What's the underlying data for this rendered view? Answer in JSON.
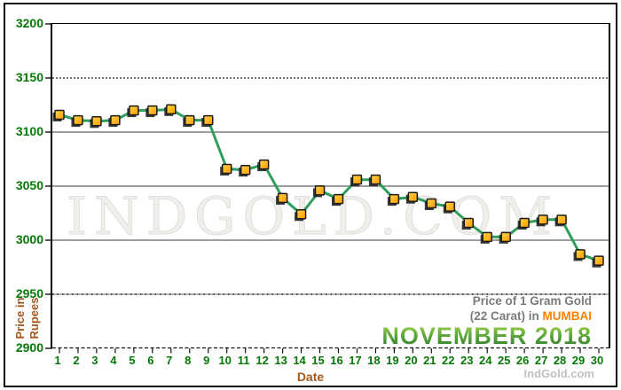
{
  "chart_data": {
    "type": "line",
    "x": [
      1,
      2,
      3,
      4,
      5,
      6,
      7,
      8,
      9,
      10,
      11,
      12,
      13,
      14,
      15,
      16,
      17,
      18,
      19,
      20,
      21,
      22,
      23,
      24,
      25,
      26,
      27,
      28,
      29,
      30
    ],
    "values": [
      3116,
      3111,
      3110,
      3111,
      3120,
      3120,
      3121,
      3111,
      3111,
      3066,
      3065,
      3070,
      3039,
      3024,
      3046,
      3038,
      3056,
      3056,
      3038,
      3040,
      3034,
      3031,
      3016,
      3003,
      3003,
      3016,
      3019,
      3019,
      2987,
      2981
    ],
    "series_name": "Price of 1 Gram Gold (22 Carat), Mumbai, November 2018",
    "xlabel": "Date",
    "ylabel": "Price in Rupees",
    "ylabel_lines": [
      "Price in",
      "Rupees"
    ],
    "ylim": [
      2900,
      3200
    ],
    "y_ticks": [
      3200,
      3150,
      3100,
      3050,
      3000,
      2950,
      2900
    ],
    "grid": "horizontal",
    "legend_position": "bottom-right",
    "colors": {
      "line": "#2e9e5c",
      "marker_fill_light": "#ffd54a",
      "marker_fill_dark": "#ff9a00",
      "marker_border": "#1a1a1a",
      "marker_shadow": "#262626",
      "axis_text_green": "#067806",
      "axis_title_brown": "#a3571f",
      "legend_gray": "#7b7b7b",
      "mumbai_orange": "#ff8000",
      "november_green": "#3e8e2e",
      "gridline_gray": "#7d7d7d"
    }
  },
  "legend": {
    "line1": "Price of 1 Gram Gold",
    "line2_prefix": "(22 Carat) in ",
    "city": "MUMBAI",
    "period": "NOVEMBER 2018"
  },
  "watermark_text": "INDGOLD.COM",
  "footer_brand": "IndGold.com"
}
